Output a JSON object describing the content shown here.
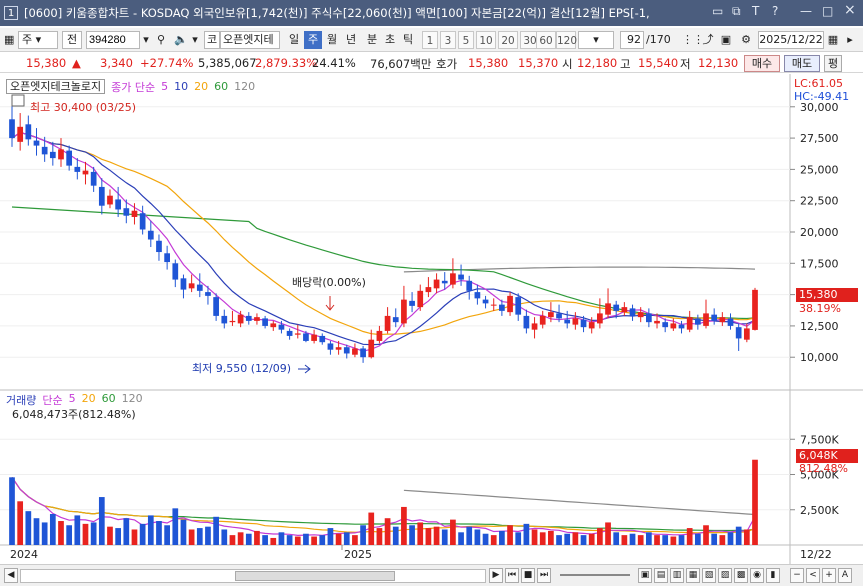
{
  "window": {
    "index": "1",
    "title": "[0600] 키움종합차트 - KOSDAQ 외국인보유[1,742(천)] 주식수[22,060(천)] 액면[100] 자본금[22(억)] 결산[12월] EPS[-1,",
    "controls": [
      "?",
      "×"
    ]
  },
  "toolbar": {
    "period_type": "주",
    "exchange": "전",
    "code": "394280",
    "market": "코",
    "stock_name": "오픈엣지테",
    "periods": [
      "일",
      "주",
      "월",
      "년",
      "분",
      "초",
      "틱"
    ],
    "selected_period": "주",
    "intervals": [
      "1",
      "3",
      "5",
      "10",
      "20",
      "30",
      "60",
      "120"
    ],
    "count": "92",
    "count_total": "/170",
    "date": "2025/12/22"
  },
  "quote": {
    "price": "15,380",
    "change_arrow": "▲",
    "change": "3,340",
    "change_pct": "+27.74%",
    "volume": "5,385,067",
    "volume_change_pct": "2,879.33%",
    "turnover": "24.41%",
    "amount": "76,607백만",
    "bid_label": "호가",
    "bid1": "15,380",
    "bid2": "15,370",
    "open_label": "시",
    "open": "12,180",
    "high_label": "고",
    "high": "15,540",
    "low_label": "저",
    "low": "12,130",
    "buy_label": "매수",
    "sell_label": "매도",
    "extra_label": "평"
  },
  "price_panel": {
    "stock_tag": "오픈엣지테크놀로지",
    "ma_label": "종가 단순",
    "ma_periods": [
      "5",
      "10",
      "20",
      "60",
      "120"
    ],
    "lc": "LC:61.05",
    "hc": "HC:-49.41",
    "high_marker": "최고 30,400 (03/25)",
    "low_marker": "최저 9,550 (12/09)",
    "dividend_marker": "배당락(0.00%)",
    "last_price": "15,380",
    "last_pct": "38.19%"
  },
  "volume_panel": {
    "label": "거래량",
    "ma_label": "단순",
    "ma_periods": [
      "5",
      "20",
      "60",
      "120"
    ],
    "value_label": "6,048,473주(812.48%)",
    "last_volume": "6,048K",
    "last_pct": "812.48%"
  },
  "x_axis": {
    "labels": [
      "2024",
      "2025"
    ],
    "right_label": "12/22"
  },
  "chart_data": {
    "type": "candlestick",
    "y_axis_ticks": [
      "30,000",
      "27,500",
      "25,000",
      "22,500",
      "20,000",
      "17,500",
      "15,000",
      "12,500",
      "10,000"
    ],
    "y_tick_values": [
      30000,
      27500,
      25000,
      22500,
      20000,
      17500,
      15000,
      12500,
      10000
    ],
    "volume_axis_ticks": [
      "7,500K",
      "5,000K",
      "2,500K"
    ],
    "volume_tick_values": [
      7500,
      5000,
      2500
    ],
    "ylim": [
      8500,
      31500
    ],
    "volume_ylim": [
      0,
      10000
    ],
    "colors": {
      "up": "#e8231f",
      "down": "#1f55d6",
      "ma5": "#c43ad6",
      "ma10": "#2b3fb8",
      "ma20": "#f2a50c",
      "ma60": "#2f9a3a",
      "ma120": "#8a8a8a"
    },
    "candles": [
      [
        29000,
        27500,
        30400,
        26800
      ],
      [
        27200,
        28400,
        29500,
        26500
      ],
      [
        28600,
        27400,
        29300,
        26900
      ],
      [
        27300,
        26900,
        28300,
        26100
      ],
      [
        26800,
        26200,
        27600,
        25600
      ],
      [
        26400,
        25900,
        27200,
        25300
      ],
      [
        25800,
        26600,
        27500,
        25200
      ],
      [
        26500,
        25300,
        26900,
        24900
      ],
      [
        25200,
        24800,
        25900,
        24200
      ],
      [
        24600,
        24900,
        25600,
        23800
      ],
      [
        24800,
        23700,
        25200,
        23200
      ],
      [
        23600,
        22100,
        24300,
        21400
      ],
      [
        22200,
        22900,
        23400,
        21900
      ],
      [
        22600,
        21800,
        23600,
        21200
      ],
      [
        21900,
        21300,
        22600,
        20700
      ],
      [
        21200,
        21700,
        22300,
        20600
      ],
      [
        21500,
        20200,
        22100,
        19800
      ],
      [
        20100,
        19400,
        20900,
        18800
      ],
      [
        19300,
        18400,
        19800,
        17700
      ],
      [
        18300,
        17600,
        18900,
        17000
      ],
      [
        17500,
        16200,
        17800,
        15600
      ],
      [
        16300,
        15400,
        16600,
        14700
      ],
      [
        15500,
        15900,
        16600,
        15200
      ],
      [
        15800,
        15300,
        16700,
        14800
      ],
      [
        15200,
        14900,
        15700,
        14200
      ],
      [
        14800,
        13300,
        15100,
        12900
      ],
      [
        13300,
        12700,
        13800,
        12300
      ],
      [
        12800,
        12900,
        13700,
        12500
      ],
      [
        12700,
        13400,
        13700,
        12400
      ],
      [
        13300,
        12900,
        13600,
        12600
      ],
      [
        12900,
        13200,
        13500,
        12600
      ],
      [
        13100,
        12500,
        13300,
        12300
      ],
      [
        12400,
        12700,
        12900,
        12100
      ],
      [
        12600,
        12200,
        12900,
        11900
      ],
      [
        12100,
        11700,
        12300,
        11400
      ],
      [
        11800,
        11900,
        12600,
        11500
      ],
      [
        11900,
        11300,
        12100,
        11200
      ],
      [
        11300,
        11800,
        12200,
        11100
      ],
      [
        11700,
        11200,
        11900,
        11000
      ],
      [
        11100,
        10600,
        11300,
        10200
      ],
      [
        10600,
        10800,
        11300,
        10200
      ],
      [
        10800,
        10300,
        11000,
        9900
      ],
      [
        10200,
        10700,
        11100,
        10000
      ],
      [
        10700,
        10000,
        10900,
        9550
      ],
      [
        10000,
        11400,
        12200,
        9900
      ],
      [
        11300,
        12100,
        12500,
        11100
      ],
      [
        12100,
        13300,
        14000,
        11900
      ],
      [
        13200,
        12800,
        13900,
        12400
      ],
      [
        12700,
        14600,
        15700,
        12400
      ],
      [
        14500,
        14100,
        15200,
        13600
      ],
      [
        14000,
        15300,
        15800,
        13700
      ],
      [
        15200,
        15600,
        16400,
        14800
      ],
      [
        15500,
        16200,
        16700,
        15100
      ],
      [
        16100,
        15900,
        16800,
        15400
      ],
      [
        15800,
        16700,
        17900,
        15500
      ],
      [
        16600,
        16200,
        17400,
        15700
      ],
      [
        16100,
        15300,
        16500,
        14600
      ],
      [
        15200,
        14700,
        15800,
        14200
      ],
      [
        14600,
        14300,
        14900,
        13900
      ],
      [
        14200,
        14200,
        14700,
        13700
      ],
      [
        14200,
        13700,
        14600,
        13300
      ],
      [
        13600,
        14900,
        15200,
        13300
      ],
      [
        14800,
        13400,
        15100,
        12900
      ],
      [
        13300,
        12300,
        13800,
        11900
      ],
      [
        12200,
        12700,
        13200,
        11500
      ],
      [
        12600,
        13300,
        13700,
        12300
      ],
      [
        13200,
        13600,
        14400,
        12800
      ],
      [
        13500,
        13100,
        14200,
        12800
      ],
      [
        13000,
        12700,
        13700,
        12300
      ],
      [
        12600,
        13100,
        13600,
        12200
      ],
      [
        13000,
        12400,
        13300,
        12000
      ],
      [
        12300,
        12800,
        13200,
        11900
      ],
      [
        12700,
        13500,
        14700,
        12300
      ],
      [
        13400,
        14300,
        15500,
        13100
      ],
      [
        14200,
        13700,
        14500,
        13100
      ],
      [
        13600,
        14000,
        14400,
        13300
      ],
      [
        13900,
        13300,
        14200,
        12900
      ],
      [
        13200,
        13600,
        14000,
        12800
      ],
      [
        13500,
        12800,
        13900,
        12400
      ],
      [
        12700,
        12900,
        13500,
        12300
      ],
      [
        12800,
        12400,
        13100,
        12000
      ],
      [
        12300,
        12700,
        13100,
        12100
      ],
      [
        12600,
        12300,
        12900,
        11900
      ],
      [
        12200,
        13200,
        13700,
        12000
      ],
      [
        13100,
        12600,
        13400,
        12200
      ],
      [
        12500,
        13500,
        14600,
        12300
      ],
      [
        13400,
        12900,
        13900,
        12600
      ],
      [
        12800,
        13200,
        13600,
        12500
      ],
      [
        13100,
        12500,
        13500,
        12200
      ],
      [
        12400,
        11500,
        12700,
        10500
      ],
      [
        11400,
        12300,
        12700,
        11200
      ],
      [
        12180,
        15380,
        15540,
        12130
      ]
    ],
    "volume": [
      4800,
      3100,
      2400,
      1900,
      1600,
      2200,
      1700,
      1400,
      2100,
      1500,
      1600,
      3400,
      1300,
      1200,
      1900,
      1100,
      1500,
      2100,
      1700,
      1400,
      2600,
      1800,
      1100,
      1200,
      1300,
      2000,
      1100,
      700,
      900,
      800,
      1000,
      700,
      500,
      900,
      700,
      600,
      800,
      600,
      700,
      1200,
      800,
      900,
      700,
      1400,
      2300,
      1200,
      1900,
      1300,
      2700,
      1400,
      1600,
      1200,
      1300,
      1100,
      1800,
      900,
      1300,
      1100,
      800,
      700,
      1000,
      1400,
      900,
      1500,
      1100,
      900,
      1000,
      700,
      800,
      900,
      700,
      800,
      1200,
      1600,
      900,
      700,
      800,
      700,
      900,
      700,
      700,
      600,
      700,
      1200,
      800,
      1400,
      800,
      700,
      900,
      1300,
      1100,
      6048
    ]
  }
}
